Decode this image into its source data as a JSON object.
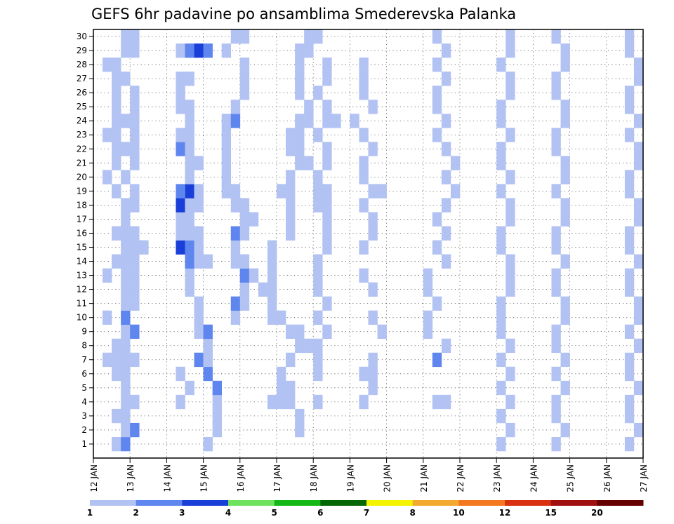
{
  "chart_data": {
    "type": "heatmap",
    "title": "GEFS 6hr padavine po ansamblima Smederevska Palanka",
    "xlabel": "",
    "ylabel": "",
    "x_ticks": [
      "12 JAN",
      "13 JAN",
      "14 JAN",
      "15 JAN",
      "16 JAN",
      "17 JAN",
      "18 JAN",
      "19 JAN",
      "20 JAN",
      "21 JAN",
      "22 JAN",
      "23 JAN",
      "24 JAN",
      "25 JAN",
      "26 JAN",
      "27 JAN"
    ],
    "y_ticks": [
      "1",
      "2",
      "3",
      "4",
      "5",
      "6",
      "7",
      "8",
      "9",
      "10",
      "11",
      "12",
      "13",
      "14",
      "15",
      "16",
      "17",
      "18",
      "19",
      "20",
      "21",
      "22",
      "23",
      "24",
      "25",
      "26",
      "27",
      "28",
      "29",
      "30"
    ],
    "x_range_steps": [
      0,
      60
    ],
    "y_range_members": [
      0,
      30
    ],
    "grid": true,
    "colorbar": {
      "labels": [
        "1",
        "2",
        "3",
        "4",
        "5",
        "6",
        "7",
        "8",
        "10",
        "12",
        "15",
        "20"
      ],
      "colors": [
        "#b2c2f2",
        "#5f86ee",
        "#1a3fd8",
        "#6fe35e",
        "#14b814",
        "#056605",
        "#f4f400",
        "#f4aa30",
        "#f47820",
        "#d83010",
        "#a01010",
        "#660000"
      ]
    },
    "cells": [
      [
        1,
        2,
        1
      ],
      [
        1,
        3,
        2
      ],
      [
        2,
        3,
        1
      ],
      [
        2,
        4,
        2
      ],
      [
        3,
        3,
        1
      ],
      [
        3,
        2,
        1
      ],
      [
        4,
        3,
        1
      ],
      [
        4,
        4,
        1
      ],
      [
        5,
        3,
        1
      ],
      [
        6,
        3,
        1
      ],
      [
        6,
        2,
        1
      ],
      [
        7,
        3,
        1
      ],
      [
        7,
        2,
        1
      ],
      [
        7,
        4,
        1
      ],
      [
        7,
        1,
        1
      ],
      [
        8,
        2,
        1
      ],
      [
        8,
        3,
        1
      ],
      [
        9,
        3,
        1
      ],
      [
        9,
        4,
        2
      ],
      [
        10,
        3,
        2
      ],
      [
        10,
        1,
        1
      ],
      [
        11,
        3,
        1
      ],
      [
        11,
        4,
        1
      ],
      [
        12,
        3,
        1
      ],
      [
        12,
        4,
        1
      ],
      [
        13,
        3,
        1
      ],
      [
        13,
        4,
        1
      ],
      [
        13,
        1,
        1
      ],
      [
        14,
        3,
        1
      ],
      [
        14,
        2,
        1
      ],
      [
        14,
        4,
        1
      ],
      [
        15,
        3,
        1
      ],
      [
        15,
        4,
        1
      ],
      [
        15,
        5,
        1
      ],
      [
        16,
        3,
        1
      ],
      [
        16,
        2,
        1
      ],
      [
        16,
        4,
        1
      ],
      [
        17,
        3,
        1
      ],
      [
        18,
        3,
        1
      ],
      [
        18,
        4,
        1
      ],
      [
        19,
        2,
        1
      ],
      [
        19,
        4,
        1
      ],
      [
        20,
        3,
        1
      ],
      [
        20,
        1,
        1
      ],
      [
        21,
        2,
        1
      ],
      [
        21,
        4,
        1
      ],
      [
        22,
        3,
        1
      ],
      [
        22,
        2,
        1
      ],
      [
        22,
        4,
        1
      ],
      [
        23,
        2,
        1
      ],
      [
        23,
        4,
        1
      ],
      [
        23,
        1,
        1
      ],
      [
        24,
        3,
        1
      ],
      [
        24,
        2,
        1
      ],
      [
        24,
        4,
        1
      ],
      [
        25,
        2,
        1
      ],
      [
        25,
        4,
        1
      ],
      [
        26,
        2,
        1
      ],
      [
        26,
        4,
        1
      ],
      [
        27,
        3,
        1
      ],
      [
        27,
        2,
        1
      ],
      [
        28,
        1,
        1
      ],
      [
        28,
        2,
        1
      ],
      [
        29,
        3,
        1
      ],
      [
        29,
        4,
        1
      ],
      [
        30,
        3,
        1
      ],
      [
        30,
        4,
        1
      ],
      [
        4,
        9,
        1
      ],
      [
        5,
        10,
        1
      ],
      [
        6,
        9,
        1
      ],
      [
        7,
        11,
        2
      ],
      [
        7,
        12,
        1
      ],
      [
        8,
        12,
        1
      ],
      [
        9,
        11,
        1
      ],
      [
        9,
        12,
        2
      ],
      [
        10,
        11,
        1
      ],
      [
        11,
        11,
        1
      ],
      [
        12,
        10,
        1
      ],
      [
        13,
        10,
        1
      ],
      [
        14,
        10,
        2
      ],
      [
        14,
        11,
        1
      ],
      [
        14,
        12,
        1
      ],
      [
        15,
        9,
        3
      ],
      [
        15,
        10,
        2
      ],
      [
        15,
        11,
        1
      ],
      [
        16,
        10,
        1
      ],
      [
        16,
        9,
        1
      ],
      [
        16,
        11,
        1
      ],
      [
        17,
        9,
        1
      ],
      [
        17,
        10,
        1
      ],
      [
        18,
        9,
        3
      ],
      [
        18,
        10,
        1
      ],
      [
        18,
        11,
        1
      ],
      [
        19,
        10,
        3
      ],
      [
        19,
        9,
        2
      ],
      [
        19,
        11,
        1
      ],
      [
        20,
        10,
        1
      ],
      [
        21,
        10,
        1
      ],
      [
        21,
        11,
        1
      ],
      [
        22,
        9,
        2
      ],
      [
        22,
        10,
        1
      ],
      [
        23,
        9,
        1
      ],
      [
        23,
        10,
        1
      ],
      [
        24,
        10,
        1
      ],
      [
        25,
        9,
        1
      ],
      [
        25,
        10,
        1
      ],
      [
        26,
        9,
        1
      ],
      [
        27,
        10,
        1
      ],
      [
        27,
        9,
        1
      ],
      [
        29,
        9,
        1
      ],
      [
        29,
        10,
        2
      ],
      [
        29,
        11,
        3
      ],
      [
        29,
        12,
        2
      ],
      [
        4,
        13,
        1
      ],
      [
        5,
        13,
        2
      ],
      [
        6,
        12,
        2
      ],
      [
        7,
        12,
        1
      ],
      [
        1,
        12,
        1
      ],
      [
        2,
        13,
        1
      ],
      [
        3,
        13,
        1
      ],
      [
        10,
        15,
        1
      ],
      [
        11,
        15,
        2
      ],
      [
        11,
        16,
        1
      ],
      [
        12,
        16,
        1
      ],
      [
        13,
        16,
        2
      ],
      [
        13,
        17,
        1
      ],
      [
        14,
        16,
        1
      ],
      [
        14,
        15,
        1
      ],
      [
        15,
        15,
        1
      ],
      [
        16,
        15,
        2
      ],
      [
        16,
        16,
        1
      ],
      [
        17,
        16,
        1
      ],
      [
        17,
        17,
        1
      ],
      [
        18,
        16,
        1
      ],
      [
        18,
        15,
        1
      ],
      [
        19,
        15,
        1
      ],
      [
        19,
        14,
        1
      ],
      [
        20,
        14,
        1
      ],
      [
        21,
        14,
        1
      ],
      [
        22,
        14,
        1
      ],
      [
        23,
        14,
        1
      ],
      [
        24,
        14,
        1
      ],
      [
        24,
        15,
        2
      ],
      [
        25,
        15,
        1
      ],
      [
        26,
        16,
        1
      ],
      [
        27,
        16,
        1
      ],
      [
        28,
        16,
        1
      ],
      [
        29,
        14,
        1
      ],
      [
        30,
        15,
        1
      ],
      [
        30,
        16,
        1
      ],
      [
        2,
        22,
        1
      ],
      [
        3,
        22,
        1
      ],
      [
        4,
        21,
        1
      ],
      [
        5,
        20,
        1
      ],
      [
        5,
        21,
        1
      ],
      [
        6,
        20,
        1
      ],
      [
        7,
        21,
        1
      ],
      [
        8,
        22,
        1
      ],
      [
        9,
        21,
        1
      ],
      [
        9,
        22,
        1
      ],
      [
        10,
        19,
        1
      ],
      [
        10,
        20,
        1
      ],
      [
        11,
        19,
        1
      ],
      [
        12,
        18,
        1
      ],
      [
        12,
        19,
        1
      ],
      [
        13,
        19,
        1
      ],
      [
        14,
        19,
        1
      ],
      [
        15,
        19,
        1
      ],
      [
        16,
        21,
        1
      ],
      [
        17,
        21,
        1
      ],
      [
        18,
        21,
        1
      ],
      [
        19,
        21,
        1
      ],
      [
        19,
        20,
        1
      ],
      [
        20,
        21,
        1
      ],
      [
        21,
        22,
        1
      ],
      [
        21,
        23,
        1
      ],
      [
        22,
        21,
        1
      ],
      [
        22,
        22,
        1
      ],
      [
        23,
        22,
        1
      ],
      [
        23,
        21,
        1
      ],
      [
        24,
        22,
        1
      ],
      [
        24,
        23,
        1
      ],
      [
        25,
        23,
        1
      ],
      [
        26,
        22,
        1
      ],
      [
        27,
        22,
        1
      ],
      [
        28,
        22,
        1
      ],
      [
        29,
        22,
        1
      ],
      [
        30,
        23,
        1
      ],
      [
        4,
        19,
        1
      ],
      [
        4,
        20,
        1
      ],
      [
        4,
        24,
        1
      ],
      [
        6,
        24,
        1
      ],
      [
        7,
        24,
        1
      ],
      [
        8,
        23,
        1
      ],
      [
        8,
        24,
        1
      ],
      [
        9,
        25,
        1
      ],
      [
        10,
        24,
        1
      ],
      [
        11,
        25,
        1
      ],
      [
        12,
        24,
        1
      ],
      [
        13,
        24,
        1
      ],
      [
        14,
        24,
        1
      ],
      [
        15,
        25,
        1
      ],
      [
        16,
        25,
        1
      ],
      [
        17,
        25,
        1
      ],
      [
        18,
        24,
        1
      ],
      [
        18,
        25,
        1
      ],
      [
        19,
        24,
        1
      ],
      [
        19,
        25,
        1
      ],
      [
        20,
        24,
        1
      ],
      [
        21,
        25,
        1
      ],
      [
        22,
        25,
        1
      ],
      [
        23,
        24,
        1
      ],
      [
        24,
        25,
        1
      ],
      [
        24,
        26,
        1
      ],
      [
        25,
        25,
        1
      ],
      [
        26,
        24,
        1
      ],
      [
        27,
        25,
        1
      ],
      [
        28,
        25,
        1
      ],
      [
        29,
        23,
        1
      ],
      [
        30,
        24,
        1
      ],
      [
        4,
        29,
        1
      ],
      [
        5,
        30,
        1
      ],
      [
        6,
        29,
        1
      ],
      [
        6,
        30,
        1
      ],
      [
        7,
        30,
        1
      ],
      [
        9,
        31,
        1
      ],
      [
        10,
        30,
        1
      ],
      [
        12,
        30,
        1
      ],
      [
        13,
        29,
        1
      ],
      [
        15,
        29,
        1
      ],
      [
        16,
        30,
        1
      ],
      [
        17,
        30,
        1
      ],
      [
        18,
        29,
        1
      ],
      [
        19,
        30,
        1
      ],
      [
        19,
        31,
        1
      ],
      [
        20,
        29,
        1
      ],
      [
        21,
        29,
        1
      ],
      [
        22,
        30,
        1
      ],
      [
        23,
        29,
        1
      ],
      [
        24,
        28,
        1
      ],
      [
        25,
        30,
        1
      ],
      [
        26,
        29,
        1
      ],
      [
        27,
        29,
        1
      ],
      [
        28,
        29,
        1
      ],
      [
        4,
        37,
        1
      ],
      [
        4,
        38,
        1
      ],
      [
        7,
        37,
        2
      ],
      [
        8,
        38,
        1
      ],
      [
        9,
        36,
        1
      ],
      [
        10,
        36,
        1
      ],
      [
        11,
        37,
        1
      ],
      [
        12,
        36,
        1
      ],
      [
        13,
        36,
        1
      ],
      [
        14,
        38,
        1
      ],
      [
        15,
        37,
        1
      ],
      [
        16,
        38,
        1
      ],
      [
        17,
        37,
        1
      ],
      [
        18,
        38,
        1
      ],
      [
        19,
        39,
        1
      ],
      [
        20,
        38,
        1
      ],
      [
        21,
        39,
        1
      ],
      [
        22,
        38,
        1
      ],
      [
        23,
        37,
        1
      ],
      [
        24,
        38,
        1
      ],
      [
        25,
        37,
        1
      ],
      [
        26,
        37,
        1
      ],
      [
        27,
        38,
        1
      ],
      [
        28,
        37,
        1
      ],
      [
        29,
        38,
        1
      ],
      [
        30,
        37,
        1
      ],
      [
        1,
        44,
        1
      ],
      [
        2,
        45,
        1
      ],
      [
        3,
        44,
        1
      ],
      [
        4,
        45,
        1
      ],
      [
        5,
        44,
        1
      ],
      [
        6,
        45,
        1
      ],
      [
        7,
        44,
        1
      ],
      [
        8,
        45,
        1
      ],
      [
        9,
        44,
        1
      ],
      [
        10,
        44,
        1
      ],
      [
        11,
        44,
        1
      ],
      [
        12,
        45,
        1
      ],
      [
        13,
        45,
        1
      ],
      [
        14,
        45,
        1
      ],
      [
        15,
        44,
        1
      ],
      [
        16,
        44,
        1
      ],
      [
        17,
        45,
        1
      ],
      [
        18,
        45,
        1
      ],
      [
        19,
        44,
        1
      ],
      [
        20,
        45,
        1
      ],
      [
        21,
        44,
        1
      ],
      [
        22,
        44,
        1
      ],
      [
        23,
        45,
        1
      ],
      [
        24,
        44,
        1
      ],
      [
        25,
        44,
        1
      ],
      [
        26,
        45,
        1
      ],
      [
        27,
        45,
        1
      ],
      [
        28,
        44,
        1
      ],
      [
        29,
        45,
        1
      ],
      [
        30,
        45,
        1
      ],
      [
        1,
        50,
        1
      ],
      [
        2,
        51,
        1
      ],
      [
        3,
        50,
        1
      ],
      [
        4,
        50,
        1
      ],
      [
        5,
        51,
        1
      ],
      [
        6,
        50,
        1
      ],
      [
        7,
        51,
        1
      ],
      [
        8,
        50,
        1
      ],
      [
        9,
        50,
        1
      ],
      [
        10,
        51,
        1
      ],
      [
        11,
        51,
        1
      ],
      [
        12,
        50,
        1
      ],
      [
        13,
        50,
        1
      ],
      [
        14,
        51,
        1
      ],
      [
        15,
        50,
        1
      ],
      [
        16,
        50,
        1
      ],
      [
        17,
        51,
        1
      ],
      [
        18,
        51,
        1
      ],
      [
        19,
        50,
        1
      ],
      [
        20,
        51,
        1
      ],
      [
        21,
        51,
        1
      ],
      [
        22,
        50,
        1
      ],
      [
        23,
        50,
        1
      ],
      [
        24,
        51,
        1
      ],
      [
        25,
        51,
        1
      ],
      [
        26,
        50,
        1
      ],
      [
        27,
        50,
        1
      ],
      [
        28,
        51,
        1
      ],
      [
        29,
        51,
        1
      ],
      [
        30,
        50,
        1
      ],
      [
        1,
        58,
        1
      ],
      [
        2,
        59,
        1
      ],
      [
        3,
        58,
        1
      ],
      [
        4,
        58,
        1
      ],
      [
        5,
        59,
        1
      ],
      [
        6,
        58,
        1
      ],
      [
        7,
        58,
        1
      ],
      [
        8,
        59,
        1
      ],
      [
        9,
        58,
        1
      ],
      [
        10,
        59,
        1
      ],
      [
        11,
        59,
        1
      ],
      [
        12,
        58,
        1
      ],
      [
        13,
        58,
        1
      ],
      [
        14,
        59,
        1
      ],
      [
        15,
        58,
        1
      ],
      [
        16,
        58,
        1
      ],
      [
        17,
        59,
        1
      ],
      [
        18,
        59,
        1
      ],
      [
        19,
        58,
        1
      ],
      [
        20,
        58,
        1
      ],
      [
        21,
        59,
        1
      ],
      [
        22,
        59,
        1
      ],
      [
        23,
        58,
        1
      ],
      [
        24,
        59,
        1
      ],
      [
        25,
        58,
        1
      ],
      [
        26,
        58,
        1
      ],
      [
        27,
        59,
        1
      ],
      [
        28,
        59,
        1
      ],
      [
        29,
        58,
        1
      ],
      [
        30,
        58,
        1
      ]
    ]
  }
}
